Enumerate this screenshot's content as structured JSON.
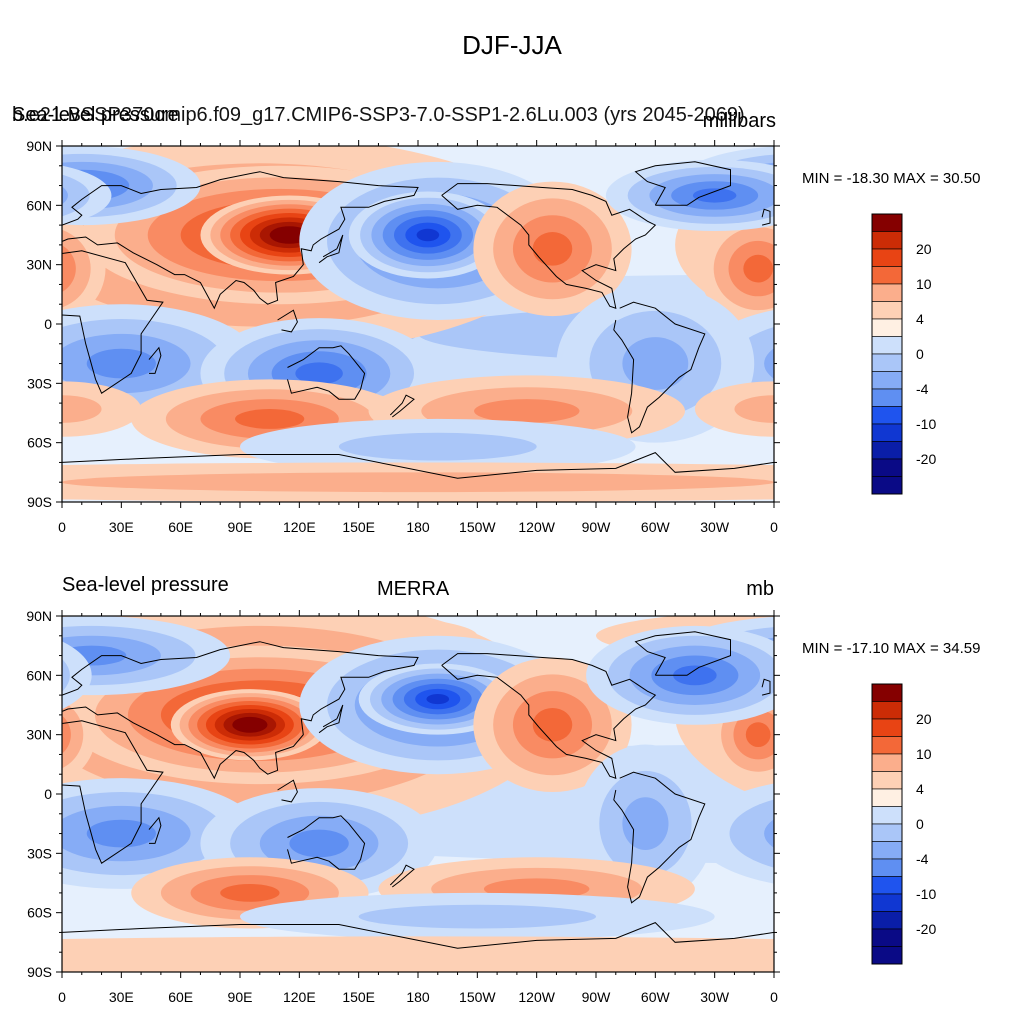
{
  "figure_title": "DJF-JJA",
  "colorbar_palette": [
    "#0a0a86",
    "#0a1ea8",
    "#1037d2",
    "#1f54ee",
    "#3e72ef",
    "#5f8ff2",
    "#86acf6",
    "#aac6f8",
    "#cde0fb",
    "#e6f0fd",
    "#fff0e3",
    "#fdd0b5",
    "#fbae8c",
    "#f98b63",
    "#f36838",
    "#e84414",
    "#cc2c06",
    "#a81602",
    "#850000"
  ],
  "colorbar_labels": [
    "20",
    "10",
    "4",
    "0",
    "-4",
    "-10",
    "-20"
  ],
  "longitude_labels": [
    "0",
    "30E",
    "60E",
    "90E",
    "120E",
    "150E",
    "180",
    "150W",
    "120W",
    "90W",
    "60W",
    "30W",
    "0"
  ],
  "latitude_labels": [
    "90N",
    "60N",
    "30N",
    "0",
    "30S",
    "60S",
    "90S"
  ],
  "panels": [
    {
      "left_title": "Sea-level pressure",
      "center_title": "b.e21.BSSP370cmip6.f09_g17.CMIP6-SSP3-7.0-SSP1-2.6Lu.003 (yrs 2045-2069)",
      "units": "millibars",
      "minmax": "MIN = -18.30 MAX =  30.50"
    },
    {
      "left_title": "Sea-level pressure",
      "center_title": "MERRA",
      "units": "mb",
      "minmax": "MIN = -17.10 MAX =  34.59"
    }
  ]
}
